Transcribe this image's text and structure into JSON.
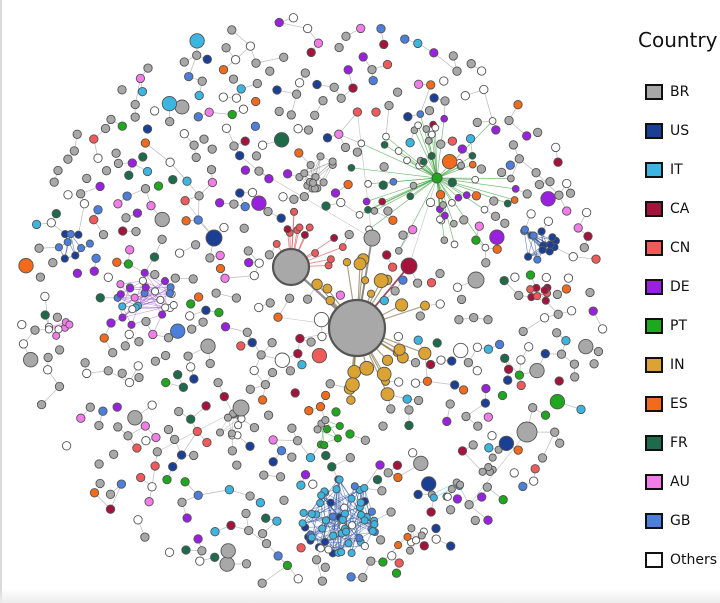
{
  "legend": {
    "title": "Country",
    "items": [
      {
        "label": "BR",
        "color": "#a8a8a8"
      },
      {
        "label": "US",
        "color": "#1b3f94"
      },
      {
        "label": "IT",
        "color": "#3cb6e0"
      },
      {
        "label": "CA",
        "color": "#a3133b"
      },
      {
        "label": "CN",
        "color": "#f05a5a"
      },
      {
        "label": "DE",
        "color": "#9a20e0"
      },
      {
        "label": "PT",
        "color": "#1ea81e"
      },
      {
        "label": "IN",
        "color": "#daa334"
      },
      {
        "label": "ES",
        "color": "#f26a1b"
      },
      {
        "label": "FR",
        "color": "#1d6b4a"
      },
      {
        "label": "AU",
        "color": "#f27de8"
      },
      {
        "label": "GB",
        "color": "#4c7fdc"
      },
      {
        "label": "Others",
        "color": "#ffffff"
      }
    ]
  },
  "graph": {
    "node_stroke": "#555555",
    "edge_color": "#b3b3b3"
  }
}
